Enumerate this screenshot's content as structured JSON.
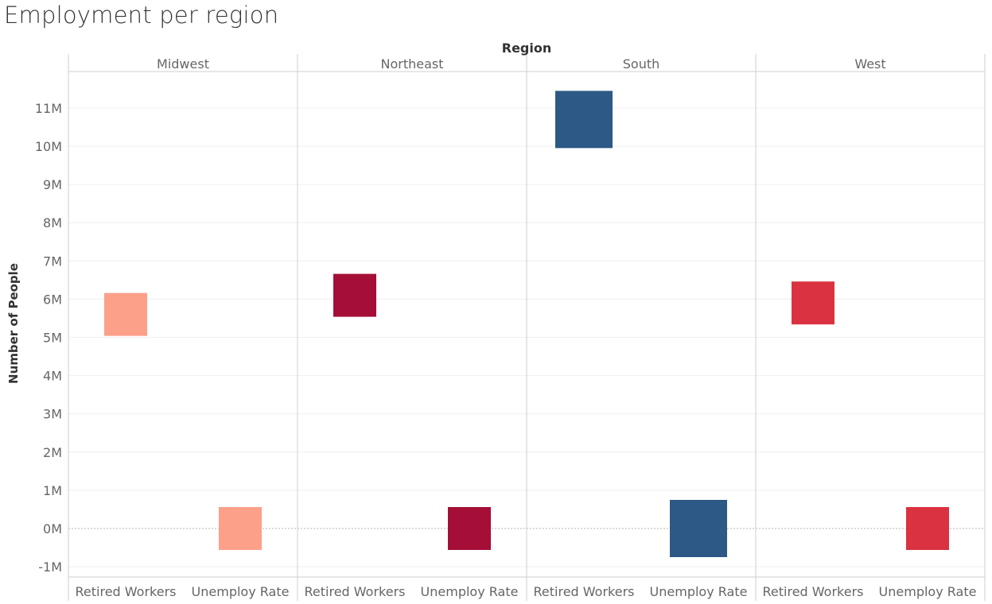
{
  "chart_data": {
    "type": "bar",
    "title": "Employment per region",
    "column_header": "Region",
    "ylabel": "Number of People",
    "ylim": [
      -1.25,
      11.9
    ],
    "yticks": [
      -1,
      0,
      1,
      2,
      3,
      4,
      5,
      6,
      7,
      8,
      9,
      10,
      11
    ],
    "ytick_labels": [
      "-1M",
      "0M",
      "1M",
      "2M",
      "3M",
      "4M",
      "5M",
      "6M",
      "7M",
      "8M",
      "9M",
      "10M",
      "11M"
    ],
    "units": "millions",
    "mark": "square",
    "grid": true,
    "panels": [
      {
        "name": "Midwest",
        "color": "#FCA08A",
        "marks": [
          {
            "category": "Retired Workers",
            "value": 5.6
          },
          {
            "category": "Unemploy Rate",
            "value": 0.0
          }
        ]
      },
      {
        "name": "Northeast",
        "color": "#A50F37",
        "marks": [
          {
            "category": "Retired Workers",
            "value": 6.1
          },
          {
            "category": "Unemploy Rate",
            "value": 0.0
          }
        ]
      },
      {
        "name": "South",
        "color": "#2C5985",
        "marks": [
          {
            "category": "Retired Workers",
            "value": 10.7
          },
          {
            "category": "Unemploy Rate",
            "value": 0.0
          }
        ]
      },
      {
        "name": "West",
        "color": "#DA3240",
        "marks": [
          {
            "category": "Retired Workers",
            "value": 5.9
          },
          {
            "category": "Unemploy Rate",
            "value": 0.0
          }
        ]
      }
    ]
  }
}
